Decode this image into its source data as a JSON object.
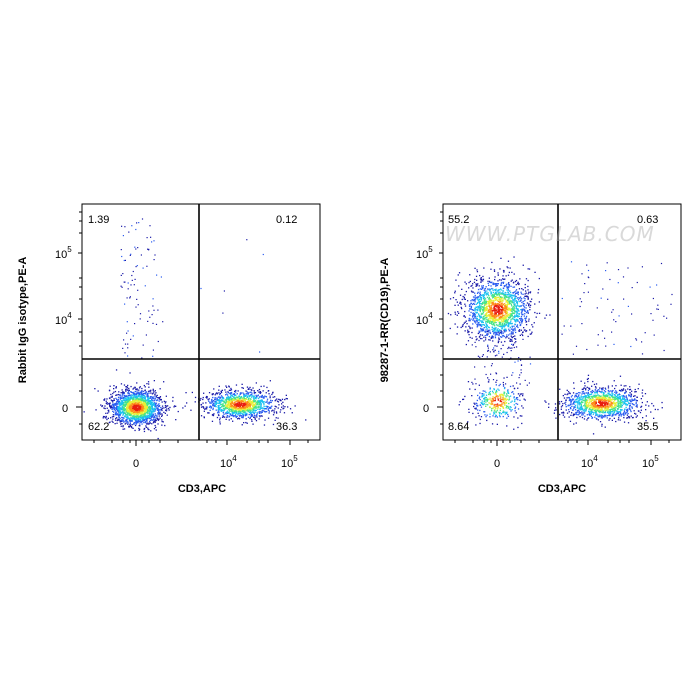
{
  "colors": {
    "density_scale": [
      "#1a1aa8",
      "#2a5cf0",
      "#19c1f0",
      "#45e38a",
      "#e6f03a",
      "#ff8c1a",
      "#e81e10"
    ],
    "axis": "#000000",
    "gate": "#000000"
  },
  "watermark": "WWW.PTGLAB.COM",
  "chart_data": [
    {
      "type": "scatter",
      "xlabel": "CD3,APC",
      "ylabel": "Rabbit IgG isotype,PE-A",
      "x_scale": "biexponential",
      "y_scale": "biexponential",
      "x_ticks": [
        "0",
        "10^4",
        "10^5"
      ],
      "y_ticks": [
        "0",
        "10^4",
        "10^5"
      ],
      "quadrant_gate": {
        "x": 2500,
        "y": 1500
      },
      "quadrants": {
        "upper_left": "1.39",
        "upper_right": "0.12",
        "lower_left": "62.2",
        "lower_right": "36.3"
      },
      "populations": [
        {
          "name": "",
          "x_center": 0,
          "y_center": 0,
          "quadrant": "lower-left",
          "percent": 62.2
        },
        {
          "name": "",
          "x_center": 20000,
          "y_center": 0,
          "quadrant": "lower-right",
          "percent": 36.3
        },
        {
          "name": "",
          "x_center": 0,
          "y_center": 30000,
          "quadrant": "upper-left",
          "percent": 1.39
        },
        {
          "name": "",
          "x_center": 20000,
          "y_center": 30000,
          "quadrant": "upper-right",
          "percent": 0.12
        }
      ]
    },
    {
      "type": "scatter",
      "xlabel": "CD3,APC",
      "ylabel": "98287-1-RR(CD19),PE-A",
      "x_scale": "biexponential",
      "y_scale": "biexponential",
      "x_ticks": [
        "0",
        "10^4",
        "10^5"
      ],
      "y_ticks": [
        "0",
        "10^4",
        "10^5"
      ],
      "quadrant_gate": {
        "x": 2500,
        "y": 1500
      },
      "quadrants": {
        "upper_left": "55.2",
        "upper_right": "0.63",
        "lower_left": "8.64",
        "lower_right": "35.5"
      },
      "populations": [
        {
          "name": "",
          "x_center": 0,
          "y_center": 20000,
          "quadrant": "upper-left",
          "percent": 55.2
        },
        {
          "name": "",
          "x_center": 0,
          "y_center": 0,
          "quadrant": "lower-left",
          "percent": 8.64
        },
        {
          "name": "",
          "x_center": 20000,
          "y_center": 0,
          "quadrant": "lower-right",
          "percent": 35.5
        },
        {
          "name": "",
          "x_center": 20000,
          "y_center": 20000,
          "quadrant": "upper-right",
          "percent": 0.63
        }
      ]
    }
  ]
}
